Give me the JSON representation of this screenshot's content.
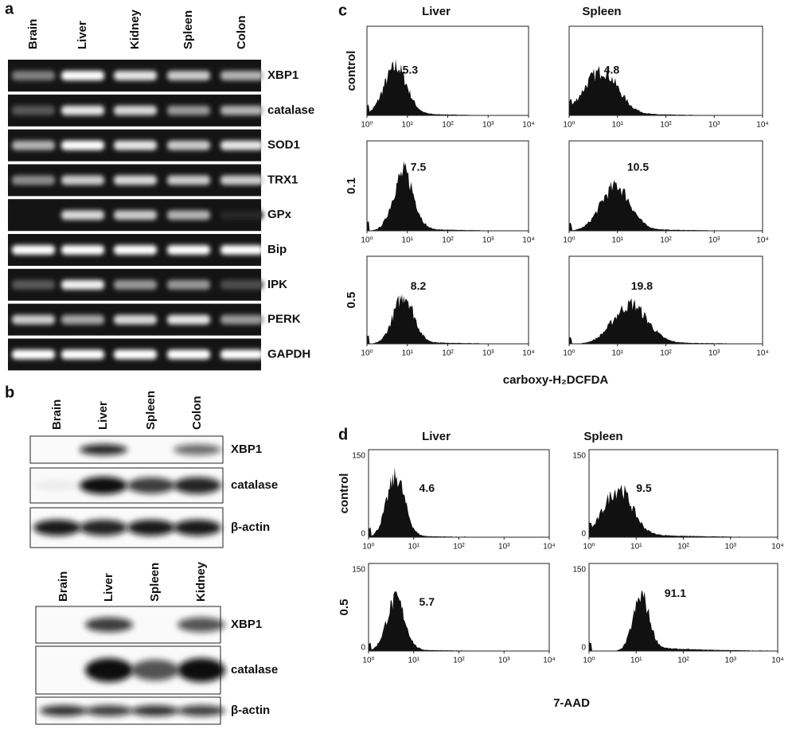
{
  "panel_a": {
    "label": "a",
    "lanes": [
      "Brain",
      "Liver",
      "Kidney",
      "Spleen",
      "Colon"
    ],
    "genes": [
      "XBP1",
      "catalase",
      "SOD1",
      "TRX1",
      "GPx",
      "Bip",
      "IPK",
      "PERK",
      "GAPDH"
    ]
  },
  "panel_b": {
    "label": "b",
    "blots": [
      {
        "lanes": [
          "Brain",
          "Liver",
          "Spleen",
          "Colon"
        ],
        "proteins": [
          "XBP1",
          "catalase",
          "β-actin"
        ]
      },
      {
        "lanes": [
          "Brain",
          "Liver",
          "Spleen",
          "Kidney"
        ],
        "proteins": [
          "XBP1",
          "catalase",
          "β-actin"
        ]
      }
    ]
  },
  "panel_c": {
    "label": "c",
    "columns": [
      "Liver",
      "Spleen"
    ],
    "rows": [
      "control",
      "0.1",
      "0.5"
    ],
    "values": [
      [
        5.3,
        4.8
      ],
      [
        7.5,
        10.5
      ],
      [
        8.2,
        19.8
      ]
    ],
    "x_ticks": [
      "10⁰",
      "10¹",
      "10²",
      "10³",
      "10⁴"
    ],
    "x_label": "carboxy-H₂DCFDA"
  },
  "panel_d": {
    "label": "d",
    "columns": [
      "Liver",
      "Spleen"
    ],
    "rows": [
      "control",
      "0.5"
    ],
    "values": [
      [
        4.6,
        9.5
      ],
      [
        5.7,
        91.1
      ]
    ],
    "x_ticks": [
      "10⁰",
      "10¹",
      "10²",
      "10³",
      "10⁴"
    ],
    "y_ticks": [
      "150",
      "0"
    ],
    "x_label": "7-AAD"
  }
}
